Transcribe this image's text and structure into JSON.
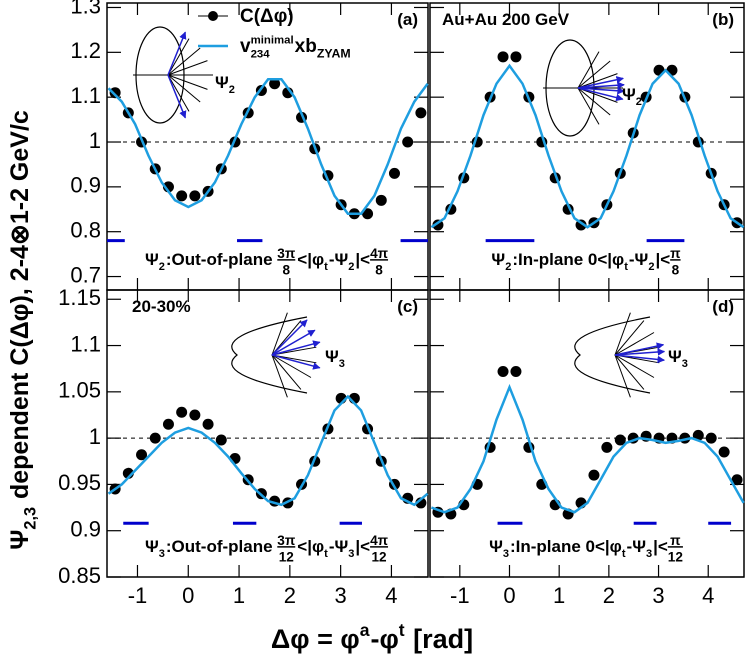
{
  "figure": {
    "ylabel": [
      {
        "text": "Ψ"
      },
      {
        "text": "2,3",
        "pos": "sub"
      },
      {
        "text": " dependent C(Δφ), 2-4⊗1-2 GeV/c"
      }
    ],
    "xlabel": [
      {
        "text": "Δφ = φ"
      },
      {
        "text": "a",
        "pos": "sup"
      },
      {
        "text": "-φ"
      },
      {
        "text": "t",
        "pos": "sup"
      },
      {
        "text": " [rad]"
      }
    ],
    "legend": [
      {
        "tokens": [
          {
            "text": "C(Δφ)"
          }
        ],
        "color": "#000000",
        "mode": "markers"
      },
      {
        "tokens": [
          {
            "text": "v"
          },
          {
            "sub": "234",
            "sup": "minimal"
          },
          {
            "text": "xb"
          },
          {
            "text": "ZYAM",
            "pos": "sub"
          }
        ],
        "color": "#1e9ee0",
        "mode": "line"
      }
    ]
  },
  "chart_data": [
    {
      "type": "scatter",
      "panel_label": "(a)",
      "xlim": [
        -1.6,
        4.72
      ],
      "ylim": [
        0.67,
        1.31
      ],
      "xticks": [
        -1,
        0,
        1,
        2,
        3,
        4
      ],
      "yticks": [
        0.7,
        0.8,
        0.9,
        1,
        1.1,
        1.2,
        1.3
      ],
      "show_xtick_labels": false,
      "show_ytick_labels": true,
      "hline": 1,
      "intervals": [
        [
          -1.6,
          -1.25
        ],
        [
          0.96,
          1.46
        ],
        [
          4.18,
          4.72
        ]
      ],
      "interval_y": 0.78,
      "interval_color": "#0000cc",
      "inset_label": [
        {
          "text": "Ψ"
        },
        {
          "text": "2",
          "pos": "sub"
        }
      ],
      "bottom_label": [
        {
          "text": "Ψ"
        },
        {
          "text": "2",
          "pos": "sub"
        },
        {
          "text": ":Out-of-plane "
        },
        {
          "num": "3π",
          "den": "8"
        },
        {
          "text": "<|φ"
        },
        {
          "text": "t",
          "pos": "sub"
        },
        {
          "text": "-Ψ"
        },
        {
          "text": "2",
          "pos": "sub"
        },
        {
          "text": "|<"
        },
        {
          "num": "4π",
          "den": "8"
        }
      ],
      "series": [
        {
          "mode": "markers",
          "color": "#000000",
          "x": [
            -1.44,
            -1.18,
            -0.92,
            -0.65,
            -0.39,
            -0.13,
            0.13,
            0.39,
            0.65,
            0.92,
            1.18,
            1.44,
            1.7,
            1.96,
            2.23,
            2.49,
            2.75,
            3.01,
            3.27,
            3.53,
            3.8,
            4.06,
            4.32,
            4.58
          ],
          "values": [
            1.11,
            1.065,
            1.0,
            0.94,
            0.9,
            0.88,
            0.88,
            0.89,
            0.94,
            1.0,
            1.065,
            1.115,
            1.13,
            1.11,
            1.055,
            0.985,
            0.925,
            0.86,
            0.84,
            0.84,
            0.87,
            0.93,
            1.0,
            1.065
          ]
        },
        {
          "mode": "line",
          "color": "#1e9ee0",
          "x": [
            -1.571,
            -1.309,
            -1.047,
            -0.785,
            -0.524,
            -0.262,
            0,
            0.262,
            0.524,
            0.785,
            1.047,
            1.309,
            1.571,
            1.833,
            2.094,
            2.356,
            2.618,
            2.88,
            3.142,
            3.403,
            3.665,
            3.927,
            4.189,
            4.451,
            4.712
          ],
          "values": [
            1.12,
            1.09,
            1.04,
            0.97,
            0.91,
            0.87,
            0.855,
            0.87,
            0.91,
            0.97,
            1.04,
            1.1,
            1.14,
            1.14,
            1.1,
            1.03,
            0.95,
            0.88,
            0.84,
            0.84,
            0.88,
            0.95,
            1.03,
            1.09,
            1.13
          ]
        }
      ]
    },
    {
      "type": "scatter",
      "panel_label": "(b)",
      "annotation": "Au+Au 200 GeV",
      "xlim": [
        -1.6,
        4.72
      ],
      "ylim": [
        0.67,
        1.31
      ],
      "xticks": [
        -1,
        0,
        1,
        2,
        3,
        4
      ],
      "yticks": [
        0.7,
        0.8,
        0.9,
        1,
        1.1,
        1.2,
        1.3
      ],
      "show_xtick_labels": false,
      "show_ytick_labels": false,
      "hline": 1,
      "intervals": [
        [
          -0.48,
          0.5
        ],
        [
          2.76,
          3.52
        ]
      ],
      "interval_y": 0.78,
      "interval_color": "#0000cc",
      "inset_label": [
        {
          "text": "Ψ"
        },
        {
          "text": "2",
          "pos": "sub"
        }
      ],
      "bottom_label": [
        {
          "text": "Ψ"
        },
        {
          "text": "2",
          "pos": "sub"
        },
        {
          "text": ":In-plane 0<|φ"
        },
        {
          "text": "t",
          "pos": "sub"
        },
        {
          "text": "-Ψ"
        },
        {
          "text": "2",
          "pos": "sub"
        },
        {
          "text": "|<"
        },
        {
          "num": "π",
          "den": "8"
        }
      ],
      "series": [
        {
          "mode": "markers",
          "color": "#000000",
          "x": [
            -1.44,
            -1.18,
            -0.92,
            -0.65,
            -0.39,
            -0.13,
            0.13,
            0.39,
            0.65,
            0.92,
            1.18,
            1.44,
            1.7,
            1.96,
            2.23,
            2.49,
            2.75,
            3.01,
            3.27,
            3.53,
            3.8,
            4.06,
            4.32,
            4.58
          ],
          "values": [
            0.815,
            0.85,
            0.92,
            1.0,
            1.1,
            1.19,
            1.19,
            1.1,
            1.0,
            0.92,
            0.85,
            0.815,
            0.82,
            0.86,
            0.93,
            1.02,
            1.1,
            1.16,
            1.16,
            1.1,
            1.0,
            0.93,
            0.86,
            0.82
          ]
        },
        {
          "mode": "line",
          "color": "#1e9ee0",
          "x": [
            -1.571,
            -1.309,
            -1.047,
            -0.785,
            -0.524,
            -0.262,
            0,
            0.262,
            0.524,
            0.785,
            1.047,
            1.309,
            1.571,
            1.833,
            2.094,
            2.356,
            2.618,
            2.88,
            3.142,
            3.403,
            3.665,
            3.927,
            4.189,
            4.451,
            4.712
          ],
          "values": [
            0.81,
            0.83,
            0.89,
            0.97,
            1.06,
            1.13,
            1.17,
            1.13,
            1.06,
            0.97,
            0.89,
            0.83,
            0.81,
            0.83,
            0.89,
            0.97,
            1.06,
            1.13,
            1.16,
            1.13,
            1.06,
            0.97,
            0.89,
            0.83,
            0.81
          ]
        }
      ]
    },
    {
      "type": "scatter",
      "panel_label": "(c)",
      "annotation": "20-30%",
      "xlim": [
        -1.6,
        4.72
      ],
      "ylim": [
        0.85,
        1.16
      ],
      "xticks": [
        -1,
        0,
        1,
        2,
        3,
        4
      ],
      "yticks": [
        0.85,
        0.9,
        0.95,
        1,
        1.05,
        1.1,
        1.15
      ],
      "show_xtick_labels": true,
      "show_ytick_labels": true,
      "hline": 1,
      "intervals": [
        [
          -1.28,
          -0.78
        ],
        [
          0.88,
          1.34
        ],
        [
          2.98,
          3.42
        ]
      ],
      "interval_y": 0.908,
      "interval_color": "#0000cc",
      "inset_label": [
        {
          "text": "Ψ"
        },
        {
          "text": "3",
          "pos": "sub"
        }
      ],
      "bottom_label": [
        {
          "text": "Ψ"
        },
        {
          "text": "3",
          "pos": "sub"
        },
        {
          "text": ":Out-of-plane "
        },
        {
          "num": "3π",
          "den": "12"
        },
        {
          "text": "<|φ"
        },
        {
          "text": "t",
          "pos": "sub"
        },
        {
          "text": "-Ψ"
        },
        {
          "text": "3",
          "pos": "sub"
        },
        {
          "text": "|<"
        },
        {
          "num": "4π",
          "den": "12"
        }
      ],
      "series": [
        {
          "mode": "markers",
          "color": "#000000",
          "x": [
            -1.44,
            -1.18,
            -0.92,
            -0.65,
            -0.39,
            -0.13,
            0.13,
            0.39,
            0.65,
            0.92,
            1.18,
            1.44,
            1.7,
            1.96,
            2.23,
            2.49,
            2.75,
            3.01,
            3.27,
            3.53,
            3.8,
            4.06,
            4.32,
            4.58
          ],
          "values": [
            0.945,
            0.962,
            0.982,
            1.0,
            1.015,
            1.028,
            1.025,
            1.015,
            0.998,
            0.978,
            0.955,
            0.94,
            0.932,
            0.93,
            0.95,
            0.975,
            1.01,
            1.043,
            1.043,
            1.01,
            0.975,
            0.95,
            0.935,
            0.93
          ]
        },
        {
          "mode": "line",
          "color": "#1e9ee0",
          "x": [
            -1.571,
            -1.309,
            -1.047,
            -0.785,
            -0.524,
            -0.262,
            0,
            0.262,
            0.524,
            0.785,
            1.047,
            1.309,
            1.571,
            1.833,
            2.094,
            2.356,
            2.618,
            2.88,
            3.142,
            3.403,
            3.665,
            3.927,
            4.189,
            4.451,
            4.712
          ],
          "values": [
            0.94,
            0.95,
            0.965,
            0.98,
            0.995,
            1.006,
            1.011,
            1.006,
            0.995,
            0.98,
            0.962,
            0.945,
            0.932,
            0.928,
            0.935,
            0.96,
            0.995,
            1.03,
            1.045,
            1.03,
            0.995,
            0.96,
            0.935,
            0.928,
            0.94
          ]
        }
      ]
    },
    {
      "type": "scatter",
      "panel_label": "(d)",
      "xlim": [
        -1.6,
        4.72
      ],
      "ylim": [
        0.85,
        1.16
      ],
      "xticks": [
        -1,
        0,
        1,
        2,
        3,
        4
      ],
      "yticks": [
        0.85,
        0.9,
        0.95,
        1,
        1.05,
        1.1,
        1.15
      ],
      "show_xtick_labels": true,
      "show_ytick_labels": false,
      "hline": 1,
      "intervals": [
        [
          -0.24,
          0.26
        ],
        [
          2.5,
          2.96
        ],
        [
          4.0,
          4.46
        ]
      ],
      "interval_y": 0.908,
      "interval_color": "#0000cc",
      "inset_label": [
        {
          "text": "Ψ"
        },
        {
          "text": "3",
          "pos": "sub"
        }
      ],
      "bottom_label": [
        {
          "text": "Ψ"
        },
        {
          "text": "3",
          "pos": "sub"
        },
        {
          "text": ":In-plane 0<|φ"
        },
        {
          "text": "t",
          "pos": "sub"
        },
        {
          "text": "-Ψ"
        },
        {
          "text": "3",
          "pos": "sub"
        },
        {
          "text": "|<"
        },
        {
          "num": "π",
          "den": "12"
        }
      ],
      "series": [
        {
          "mode": "markers",
          "color": "#000000",
          "x": [
            -1.44,
            -1.18,
            -0.92,
            -0.65,
            -0.39,
            -0.13,
            0.13,
            0.39,
            0.65,
            0.92,
            1.18,
            1.44,
            1.7,
            1.96,
            2.23,
            2.49,
            2.75,
            3.01,
            3.27,
            3.53,
            3.8,
            4.06,
            4.32,
            4.58
          ],
          "values": [
            0.92,
            0.918,
            0.928,
            0.95,
            0.99,
            1.072,
            1.072,
            0.99,
            0.95,
            0.928,
            0.918,
            0.93,
            0.96,
            0.99,
            0.998,
            1.0,
            1.002,
            1.0,
            1.0,
            1.0,
            1.003,
            1.0,
            0.985,
            0.955
          ]
        },
        {
          "mode": "line",
          "color": "#1e9ee0",
          "x": [
            -1.571,
            -1.309,
            -1.047,
            -0.785,
            -0.524,
            -0.262,
            0,
            0.262,
            0.524,
            0.785,
            1.047,
            1.309,
            1.571,
            1.833,
            2.094,
            2.356,
            2.618,
            2.88,
            3.142,
            3.403,
            3.665,
            3.927,
            4.189,
            4.451,
            4.712
          ],
          "values": [
            0.925,
            0.92,
            0.925,
            0.945,
            0.975,
            1.02,
            1.055,
            1.02,
            0.975,
            0.945,
            0.925,
            0.92,
            0.93,
            0.955,
            0.98,
            0.995,
            1.0,
            0.998,
            0.995,
            0.997,
            1.0,
            0.995,
            0.98,
            0.955,
            0.93
          ]
        }
      ]
    }
  ]
}
